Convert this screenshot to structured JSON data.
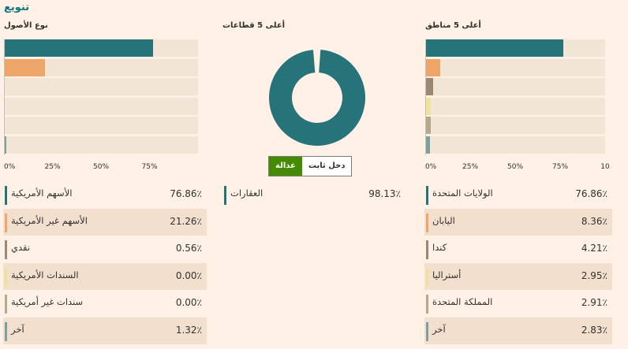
{
  "title": "تنويع",
  "panels": {
    "assets": {
      "heading": "نوع الأصول",
      "ticks": [
        "0%",
        "25%",
        "50%",
        "75%"
      ],
      "rows": [
        {
          "label": "الأسهم الأمريكية",
          "value": "76.86٪",
          "color": "#26737a"
        },
        {
          "label": "الأسهم غير الأمريكية",
          "value": "21.26٪",
          "color": "#eda568"
        },
        {
          "label": "نقدي",
          "value": "0.56٪",
          "color": "#9b8776"
        },
        {
          "label": "السندات الأمريكية",
          "value": "0.00٪",
          "color": "#f0e29a"
        },
        {
          "label": "سندات غير أمريكية",
          "value": "0.00٪",
          "color": "#b4a98a"
        },
        {
          "label": "آخر",
          "value": "1.32٪",
          "color": "#7aa1a0"
        }
      ]
    },
    "sectors": {
      "heading": "أعلى 5 قطاعات",
      "toggle": {
        "fixed_income": "دخل ثابت",
        "equity": "عدالة"
      },
      "rows": [
        {
          "label": "العقارات",
          "value": "98.13٪",
          "color": "#26737a"
        }
      ]
    },
    "regions": {
      "heading": "أعلى 5 مناطق",
      "ticks": [
        "0%",
        "25%",
        "50%",
        "75%",
        "10"
      ],
      "rows": [
        {
          "label": "الولايات المتحدة",
          "value": "76.86٪",
          "color": "#26737a"
        },
        {
          "label": "اليابان",
          "value": "8.36٪",
          "color": "#eda568"
        },
        {
          "label": "كندا",
          "value": "4.21٪",
          "color": "#9b8776"
        },
        {
          "label": "أستراليا",
          "value": "2.95٪",
          "color": "#f0e29a"
        },
        {
          "label": "المملكة المتحدة",
          "value": "2.91٪",
          "color": "#b4a98a"
        },
        {
          "label": "آخر",
          "value": "2.83٪",
          "color": "#7aa1a0"
        }
      ]
    }
  },
  "chart_data": [
    {
      "type": "bar",
      "title": "نوع الأصول",
      "categories": [
        "الأسهم الأمريكية",
        "الأسهم غير الأمريكية",
        "نقدي",
        "السندات الأمريكية",
        "سندات غير أمريكية",
        "آخر"
      ],
      "values": [
        76.86,
        21.26,
        0.56,
        0.0,
        0.0,
        1.32
      ],
      "xlim": [
        0,
        100
      ],
      "grid": false
    },
    {
      "type": "pie",
      "title": "أعلى 5 قطاعات",
      "categories": [
        "العقارات"
      ],
      "values": [
        98.13
      ]
    },
    {
      "type": "bar",
      "title": "أعلى 5 مناطق",
      "categories": [
        "الولايات المتحدة",
        "اليابان",
        "كندا",
        "أستراليا",
        "المملكة المتحدة",
        "آخر"
      ],
      "values": [
        76.86,
        8.36,
        4.21,
        2.95,
        2.91,
        2.83
      ],
      "xlim": [
        0,
        100
      ],
      "grid": false
    }
  ]
}
